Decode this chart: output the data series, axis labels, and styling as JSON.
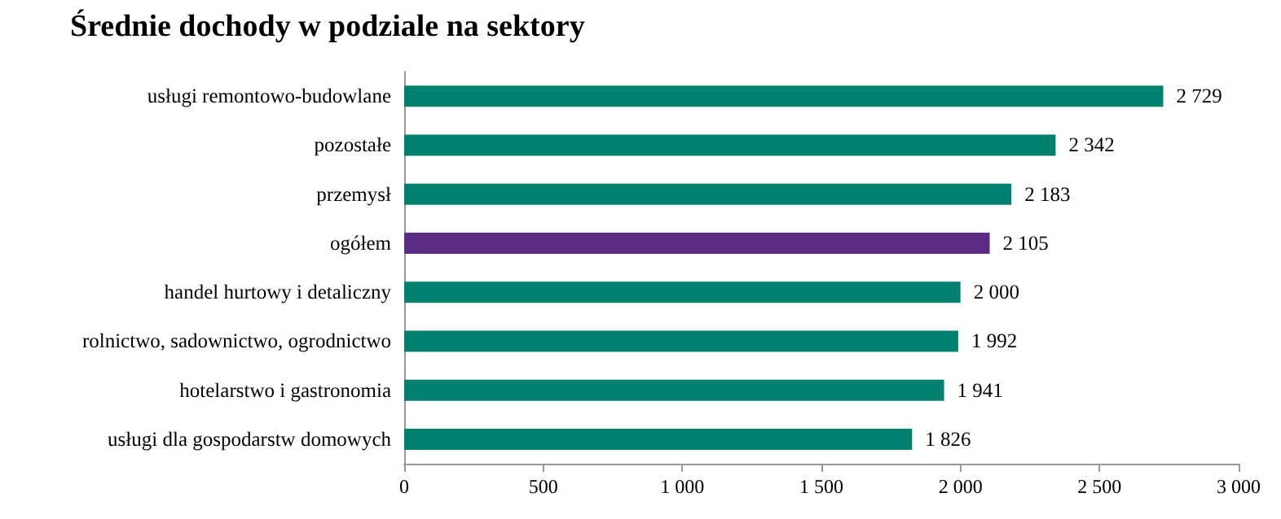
{
  "chart_data": {
    "type": "bar",
    "orientation": "horizontal",
    "title": "Średnie dochody w podziale na sektory",
    "categories": [
      "usługi remontowo-budowlane",
      "pozostałe",
      "przemysł",
      "ogółem",
      "handel hurtowy i detaliczny",
      "rolnictwo, sadownictwo, ogrodnictwo",
      "hotelarstwo i gastronomia",
      "usługi dla gospodarstw domowych"
    ],
    "values": [
      2729,
      2342,
      2183,
      2105,
      2000,
      1992,
      1941,
      1826
    ],
    "colors": [
      "#00806e",
      "#00806e",
      "#00806e",
      "#5b2d82",
      "#00806e",
      "#00806e",
      "#00806e",
      "#00806e"
    ],
    "value_labels": [
      "2 729",
      "2 342",
      "2 183",
      "2 105",
      "2 000",
      "1 992",
      "1 941",
      "1 826"
    ],
    "xlim": [
      0,
      3000
    ],
    "xticks": [
      0,
      500,
      {
        "value": 1000,
        "label": "1 000"
      },
      {
        "value": 1500,
        "label": "1 500"
      },
      {
        "value": 2000,
        "label": "2 000"
      },
      {
        "value": 2500,
        "label": "2 500"
      },
      {
        "value": 3000,
        "label": "3 000"
      }
    ],
    "grid": false
  }
}
